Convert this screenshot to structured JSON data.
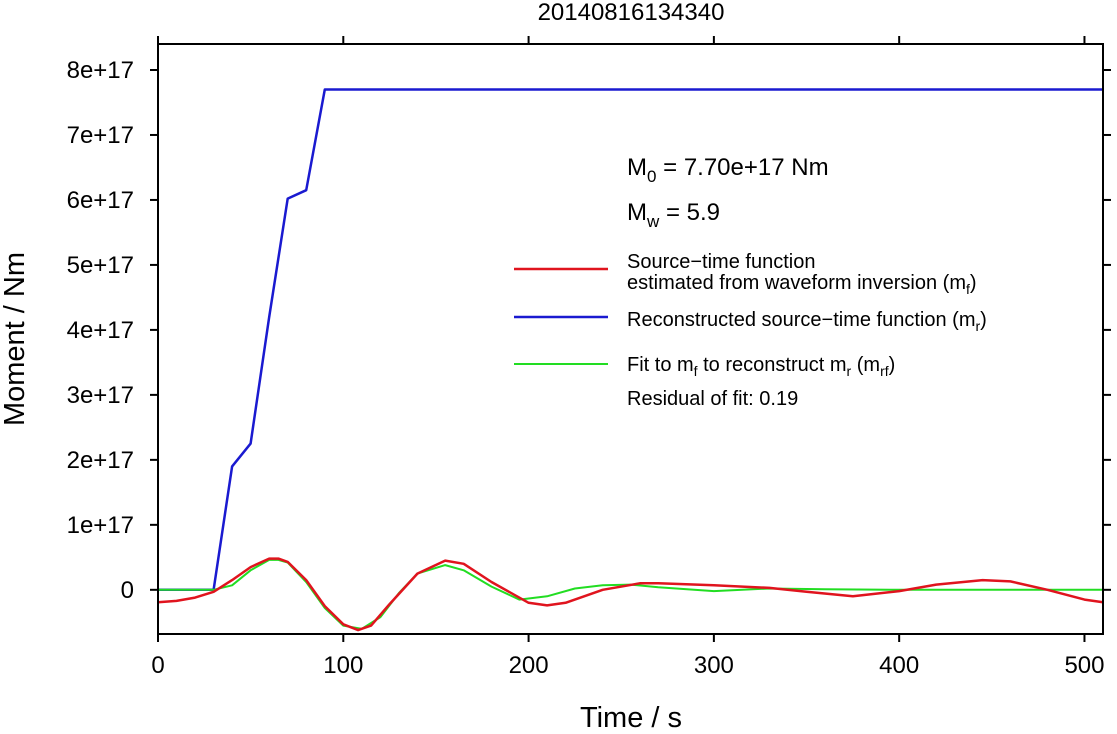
{
  "chart_data": {
    "type": "line",
    "title": "20140816134340",
    "xlabel": "Time / s",
    "ylabel": "Moment / Nm",
    "xlim": [
      0,
      510
    ],
    "ylim": [
      -6.8e+16,
      8.4e+17
    ],
    "x_ticks": [
      0,
      100,
      200,
      300,
      400,
      500
    ],
    "x_tick_labels": [
      "0",
      "100",
      "200",
      "300",
      "400",
      "500"
    ],
    "y_ticks": [
      0,
      1e+17,
      2e+17,
      3e+17,
      4e+17,
      5e+17,
      6e+17,
      7e+17,
      8e+17
    ],
    "y_tick_labels": [
      "0",
      "1e+17",
      "2e+17",
      "3e+17",
      "4e+17",
      "5e+17",
      "6e+17",
      "7e+17",
      "8e+17"
    ],
    "grid": false,
    "legend_position": "right",
    "annotations": {
      "m0": {
        "prefix": "M",
        "sub": "0",
        "text": " = 7.70e+17 Nm"
      },
      "mw": {
        "prefix": "M",
        "sub": "w",
        "text": " = 5.9"
      },
      "residual": "Residual of fit: 0.19"
    },
    "series": [
      {
        "name": "Source−time function estimated from waveform inversion (m_f)",
        "legend_line1": "Source−time function",
        "legend_line2": "estimated from waveform inversion (m",
        "legend_sub": "f",
        "legend_close": ")",
        "color": "#e0141e",
        "x": [
          0,
          10,
          20,
          30,
          40,
          50,
          60,
          65,
          70,
          80,
          90,
          100,
          108,
          115,
          125,
          140,
          155,
          165,
          180,
          200,
          210,
          220,
          240,
          260,
          270,
          300,
          330,
          350,
          375,
          400,
          420,
          445,
          460,
          480,
          500,
          510
        ],
        "y": [
          -1.9e+16,
          -1.7e+16,
          -1.2e+16,
          -3000000000000000.0,
          1.5e+16,
          3.5e+16,
          4.8e+16,
          4.8e+16,
          4.3e+16,
          1.5e+16,
          -2.5e+16,
          -5.3e+16,
          -6.2e+16,
          -5.5e+16,
          -2.2e+16,
          2.5e+16,
          4.5e+16,
          4e+16,
          1.2e+16,
          -2e+16,
          -2.4e+16,
          -2e+16,
          0.0,
          1e+16,
          1e+16,
          7000000000000000.0,
          3000000000000000.0,
          -3000000000000000.0,
          -1e+16,
          -2000000000000000.0,
          8000000000000000.0,
          1.5e+16,
          1.3e+16,
          0.0,
          -1.5e+16,
          -1.9e+16
        ]
      },
      {
        "name": "Reconstructed source−time function (m_r)",
        "legend_line1": "Reconstructed source−time function (m",
        "legend_sub": "r",
        "legend_close": ")",
        "color": "#1a1ad0",
        "x": [
          0,
          30,
          40,
          50,
          60,
          70,
          80,
          90,
          510
        ],
        "y": [
          0,
          0,
          1.9e+17,
          2.25e+17,
          4.2e+17,
          6.02e+17,
          6.15e+17,
          7.7e+17,
          7.7e+17
        ]
      },
      {
        "name": "Fit to m_f to reconstruct m_r (m_rf)",
        "legend_line1": "Fit to m",
        "legend_sub1": "f",
        "legend_mid": " to reconstruct m",
        "legend_sub2": "r",
        "legend_mid2": " (m",
        "legend_sub3": "rf",
        "legend_close": ")",
        "color": "#22dd22",
        "x": [
          0,
          20,
          30,
          40,
          50,
          60,
          65,
          70,
          80,
          90,
          100,
          110,
          120,
          130,
          140,
          155,
          165,
          180,
          195,
          210,
          225,
          240,
          255,
          270,
          300,
          330,
          360,
          400,
          450,
          510
        ],
        "y": [
          0,
          0,
          0.0,
          7000000000000000.0,
          3e+16,
          4.6e+16,
          4.6e+16,
          4.2e+16,
          1.2e+16,
          -2.8e+16,
          -5.5e+16,
          -6e+16,
          -4.2e+16,
          -5000000000000000.0,
          2.5e+16,
          3.8e+16,
          3e+16,
          5000000000000000.0,
          -1.5e+16,
          -1e+16,
          2000000000000000.0,
          7000000000000000.0,
          8000000000000000.0,
          4000000000000000.0,
          -2000000000000000.0,
          2000000000000000.0,
          1000000000000000.0,
          0.0,
          0.0,
          0.0
        ]
      }
    ]
  }
}
